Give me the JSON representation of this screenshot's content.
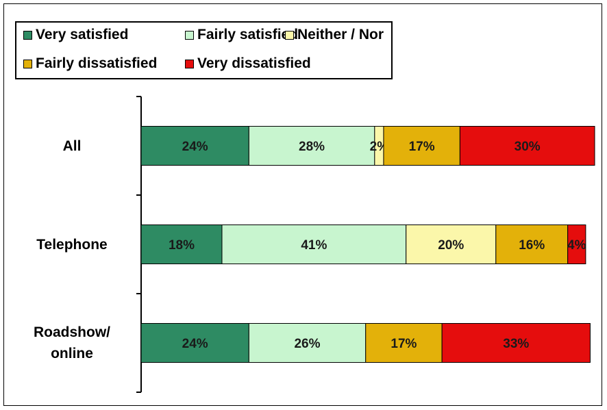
{
  "chart_data": {
    "type": "bar",
    "orientation": "horizontal",
    "stacked": true,
    "categories": [
      "All",
      "Telephone",
      "Roadshow/ online"
    ],
    "category_lines": [
      [
        "All"
      ],
      [
        "Telephone"
      ],
      [
        "Roadshow/",
        "online"
      ]
    ],
    "series": [
      {
        "name": "Very satisfied",
        "values": [
          24,
          18,
          24
        ],
        "labels": [
          "24%",
          "18%",
          "24%"
        ],
        "color": "#2e8b63"
      },
      {
        "name": "Fairly satisfied",
        "values": [
          28,
          41,
          26
        ],
        "labels": [
          "28%",
          "41%",
          "26%"
        ],
        "color": "#c8f5cf"
      },
      {
        "name": "Neither / Nor",
        "values": [
          2,
          20,
          0
        ],
        "labels": [
          "2%",
          "20%",
          ""
        ],
        "color": "#fbf7aa"
      },
      {
        "name": "Fairly dissatisfied",
        "values": [
          17,
          16,
          17
        ],
        "labels": [
          "17%",
          "16%",
          "17%"
        ],
        "color": "#e3b10a"
      },
      {
        "name": "Very dissatisfied",
        "values": [
          30,
          4,
          33
        ],
        "labels": [
          "30%",
          "4%",
          "33%"
        ],
        "color": "#e50d0d"
      }
    ],
    "xlim": [
      0,
      101
    ],
    "legend_position": "top-left",
    "grid": false
  }
}
